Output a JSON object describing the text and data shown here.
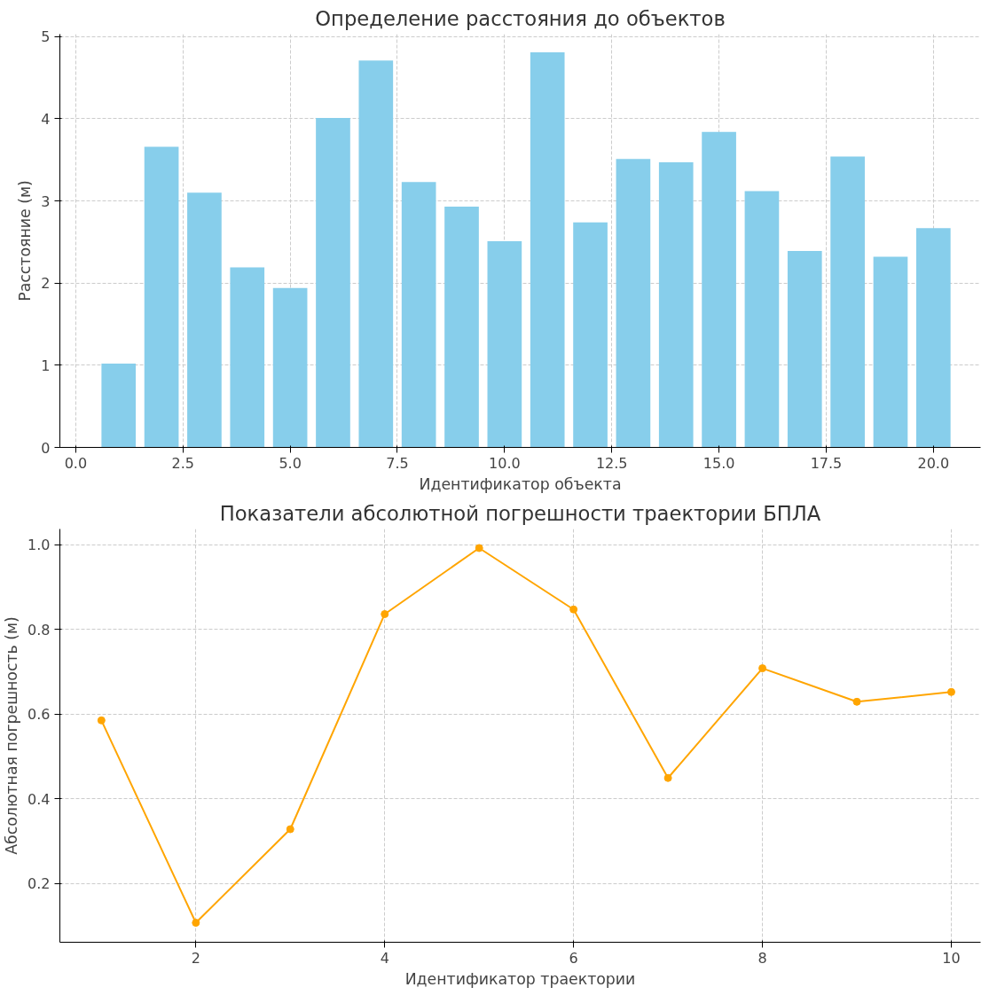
{
  "chart_data": [
    {
      "type": "bar",
      "title": "Определение расстояния до объектов",
      "xlabel": "Идентификатор объекта",
      "ylabel": "Расстояние (м)",
      "x": [
        1,
        2,
        3,
        4,
        5,
        6,
        7,
        8,
        9,
        10,
        11,
        12,
        13,
        14,
        15,
        16,
        17,
        18,
        19,
        20
      ],
      "values": [
        1.02,
        3.66,
        3.1,
        2.19,
        1.94,
        4.01,
        4.71,
        3.23,
        2.93,
        2.51,
        4.81,
        2.74,
        3.51,
        3.47,
        3.84,
        3.12,
        2.39,
        3.54,
        2.32,
        2.67
      ],
      "color": "#87ceeb",
      "xlim": [
        -0.37,
        21.1
      ],
      "ylim": [
        0,
        5.03
      ],
      "xticks": [
        {
          "value": 0,
          "label": "0.0"
        },
        {
          "value": 2.5,
          "label": "2.5"
        },
        {
          "value": 5,
          "label": "5.0"
        },
        {
          "value": 7.5,
          "label": "7.5"
        },
        {
          "value": 10,
          "label": "10.0"
        },
        {
          "value": 12.5,
          "label": "12.5"
        },
        {
          "value": 15,
          "label": "15.0"
        },
        {
          "value": 17.5,
          "label": "17.5"
        },
        {
          "value": 20,
          "label": "20.0"
        }
      ],
      "yticks": [
        0,
        1,
        2,
        3,
        4,
        5
      ],
      "grid": true
    },
    {
      "type": "line",
      "title": "Показатели абсолютной погрешности траектории БПЛА",
      "xlabel": "Идентификатор траектории",
      "ylabel": "Абсолютная погрешность (м)",
      "x": [
        1,
        2,
        3,
        4,
        5,
        6,
        7,
        8,
        9,
        10
      ],
      "values": [
        0.585,
        0.107,
        0.328,
        0.836,
        0.992,
        0.847,
        0.449,
        0.708,
        0.629,
        0.652
      ],
      "color": "#ffa500",
      "marker": "circle",
      "line_style": "solid",
      "xlim": [
        0.56,
        10.31
      ],
      "ylim": [
        0.061,
        1.037
      ],
      "xticks": [
        2,
        4,
        6,
        8,
        10
      ],
      "yticks": [
        0.2,
        0.4,
        0.6,
        0.8,
        {
          "value": 1,
          "label": "1.0"
        }
      ],
      "grid": true
    }
  ]
}
